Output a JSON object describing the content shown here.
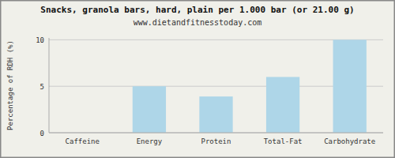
{
  "chart_data": {
    "type": "bar",
    "title": "Snacks, granola bars, hard, plain per 1.000 bar (or 21.00 g)",
    "subtitle": "www.dietandfitnesstoday.com",
    "ylabel": "Percentage of RDH (%)",
    "categories": [
      "Caffeine",
      "Energy",
      "Protein",
      "Total-Fat",
      "Carbohydrate"
    ],
    "values": [
      0,
      5.0,
      3.9,
      6.0,
      10.0
    ],
    "color": "#aed6e8",
    "ylim": [
      0,
      10.2
    ],
    "yticks": [
      0,
      5,
      10
    ],
    "grid": true
  }
}
